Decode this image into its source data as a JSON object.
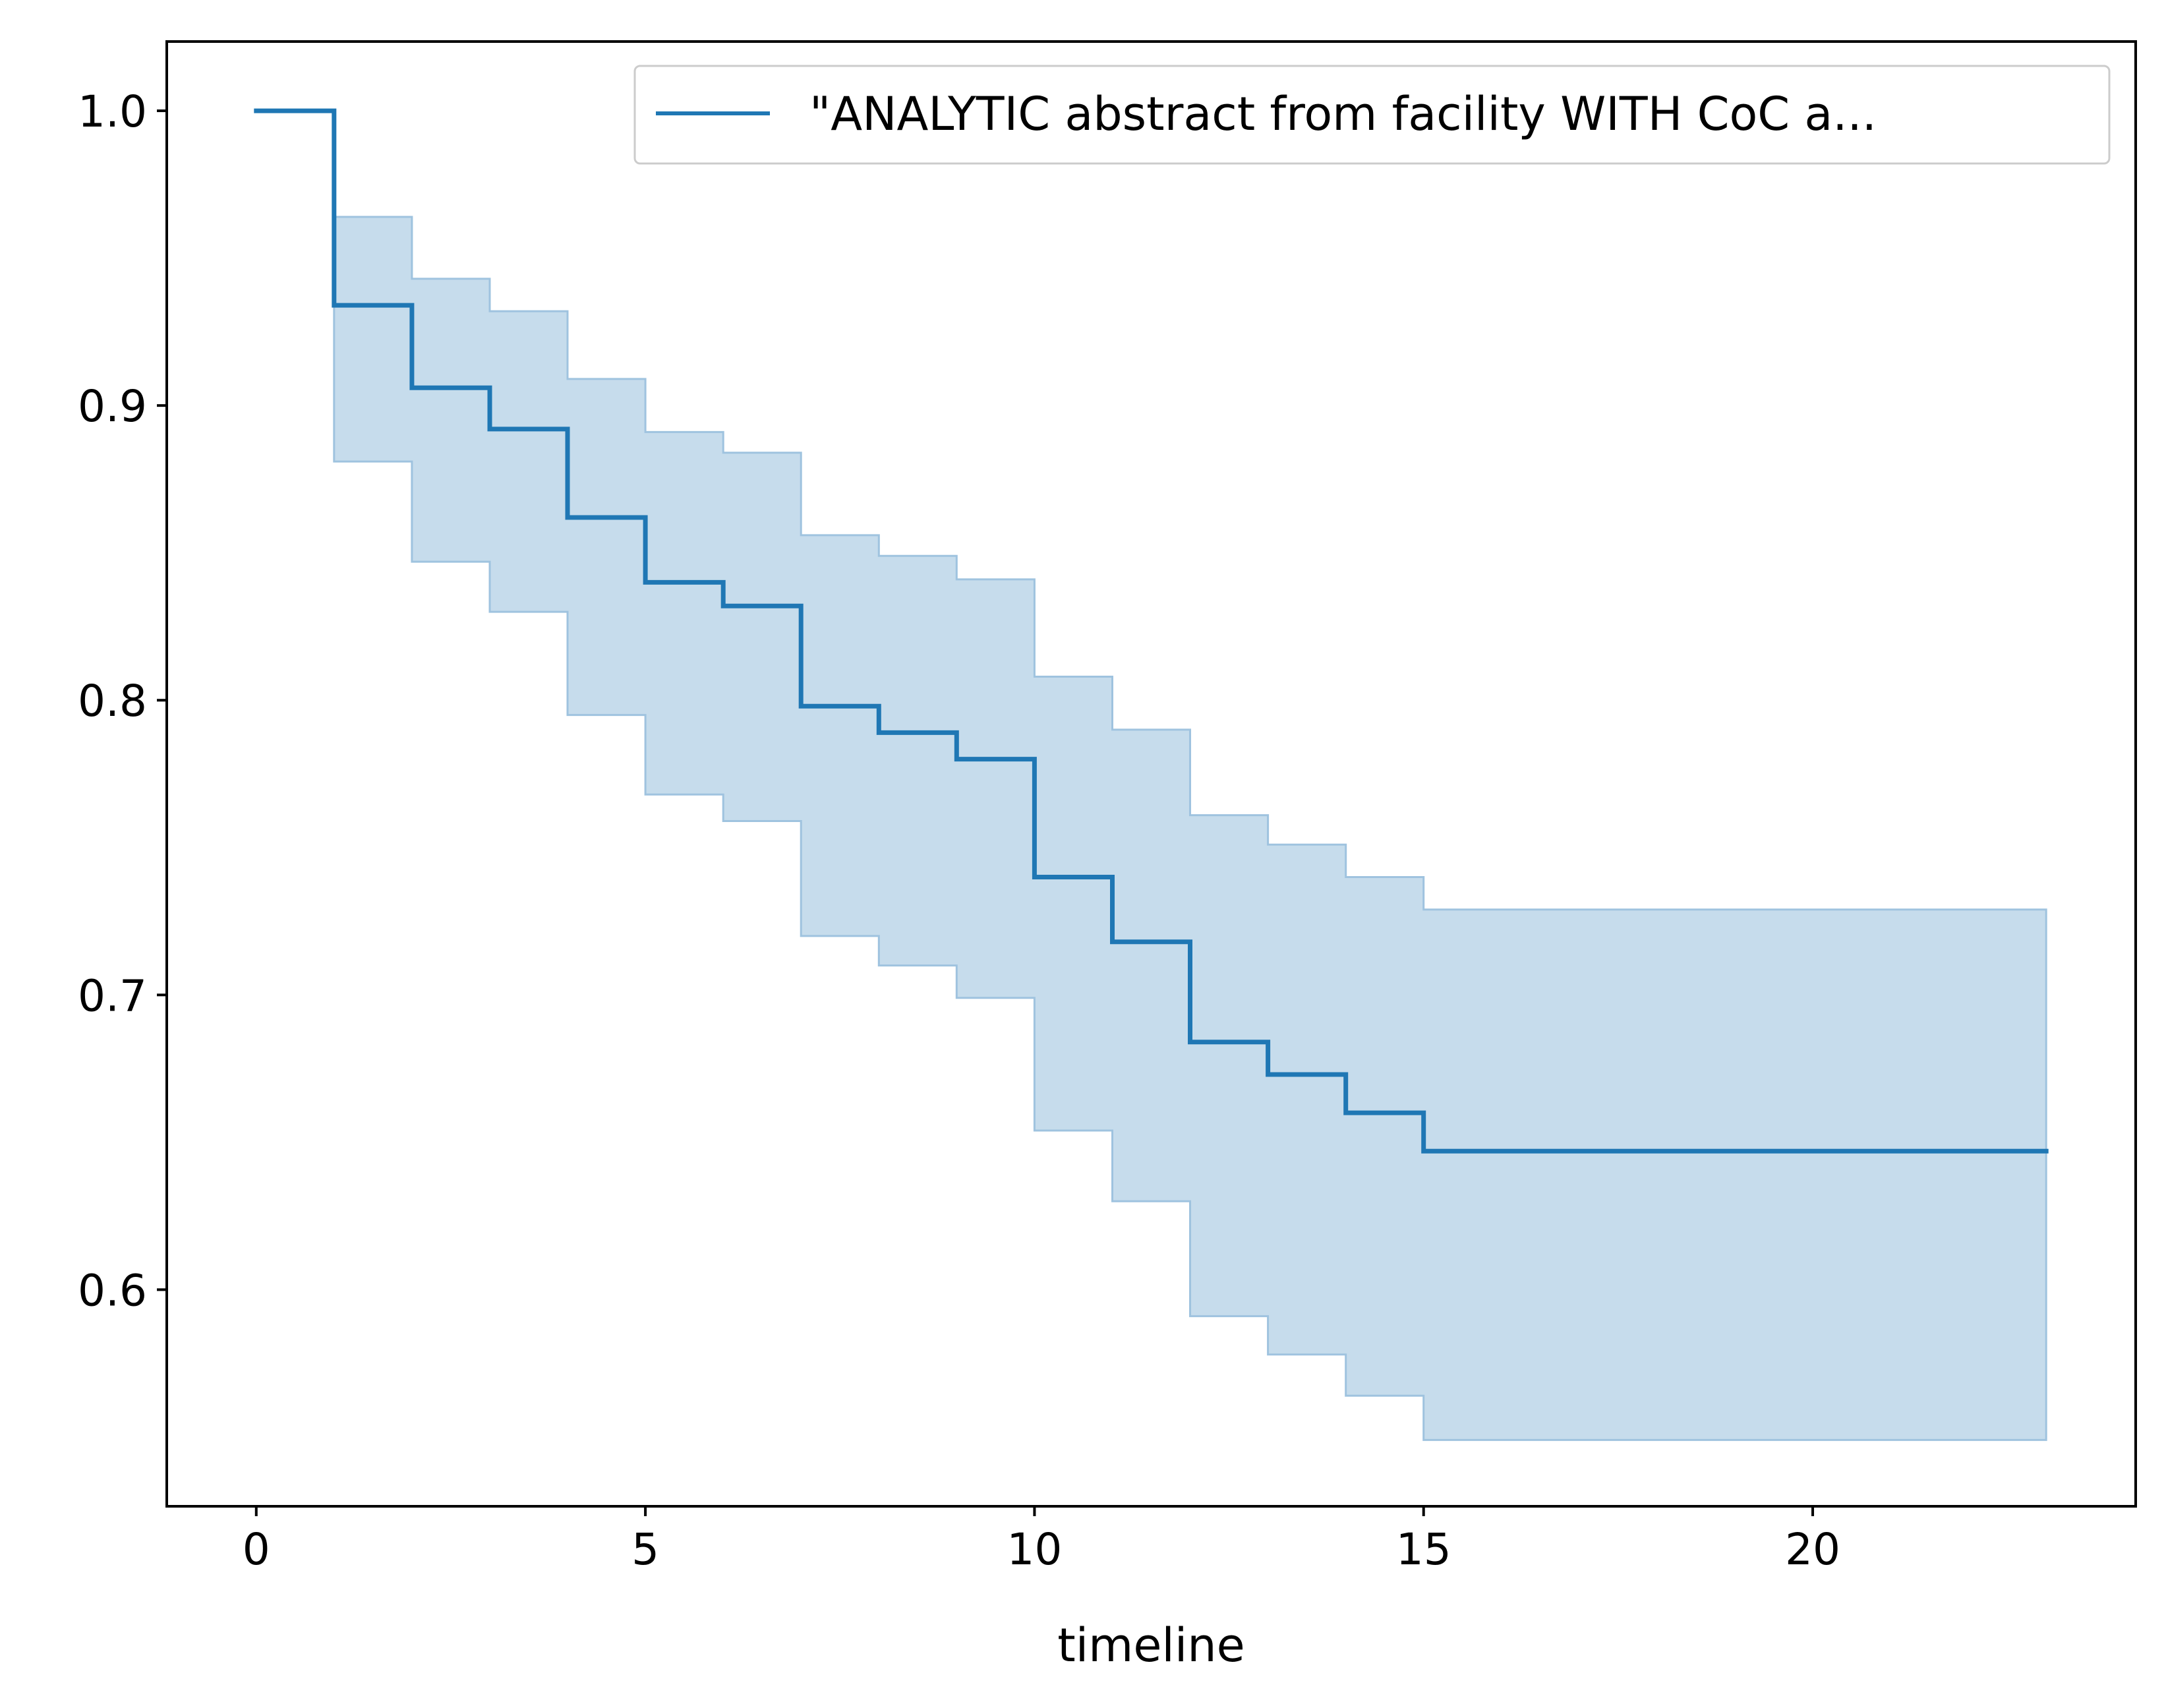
{
  "chart_data": {
    "type": "line",
    "subtype": "kaplan-meier-step",
    "title": "",
    "xlabel": "timeline",
    "ylabel": "",
    "xlim": [
      -1.15,
      24.15
    ],
    "ylim": [
      0.5265,
      1.0235
    ],
    "xticks": [
      0,
      5,
      10,
      15,
      20
    ],
    "xtick_labels": [
      "0",
      "5",
      "10",
      "15",
      "20"
    ],
    "yticks": [
      0.6,
      0.7,
      0.8,
      0.9,
      1.0
    ],
    "ytick_labels": [
      "0.6",
      "0.7",
      "0.8",
      "0.9",
      "1.0"
    ],
    "grid": false,
    "legend_position": "top-right",
    "series": [
      {
        "name": "\"ANALYTIC abstract from facility WITH CoC a...",
        "color": "#1f77b4",
        "ci_fill_color": "#c6dcec",
        "ci_edge_color": "#9fc3df",
        "x": [
          0,
          1,
          2,
          3,
          4,
          5,
          6,
          7,
          8,
          9,
          10,
          11,
          12,
          13,
          14,
          15,
          23
        ],
        "survival": [
          1.0,
          0.934,
          0.906,
          0.892,
          0.862,
          0.84,
          0.832,
          0.798,
          0.789,
          0.78,
          0.74,
          0.718,
          0.684,
          0.673,
          0.66,
          0.647,
          0.647
        ],
        "ci_upper": [
          1.0,
          0.964,
          0.943,
          0.932,
          0.909,
          0.891,
          0.884,
          0.856,
          0.849,
          0.841,
          0.808,
          0.79,
          0.761,
          0.751,
          0.74,
          0.729,
          0.729
        ],
        "ci_lower": [
          1.0,
          0.881,
          0.847,
          0.83,
          0.795,
          0.768,
          0.759,
          0.72,
          0.71,
          0.699,
          0.654,
          0.63,
          0.591,
          0.578,
          0.564,
          0.549,
          0.549
        ]
      }
    ]
  }
}
